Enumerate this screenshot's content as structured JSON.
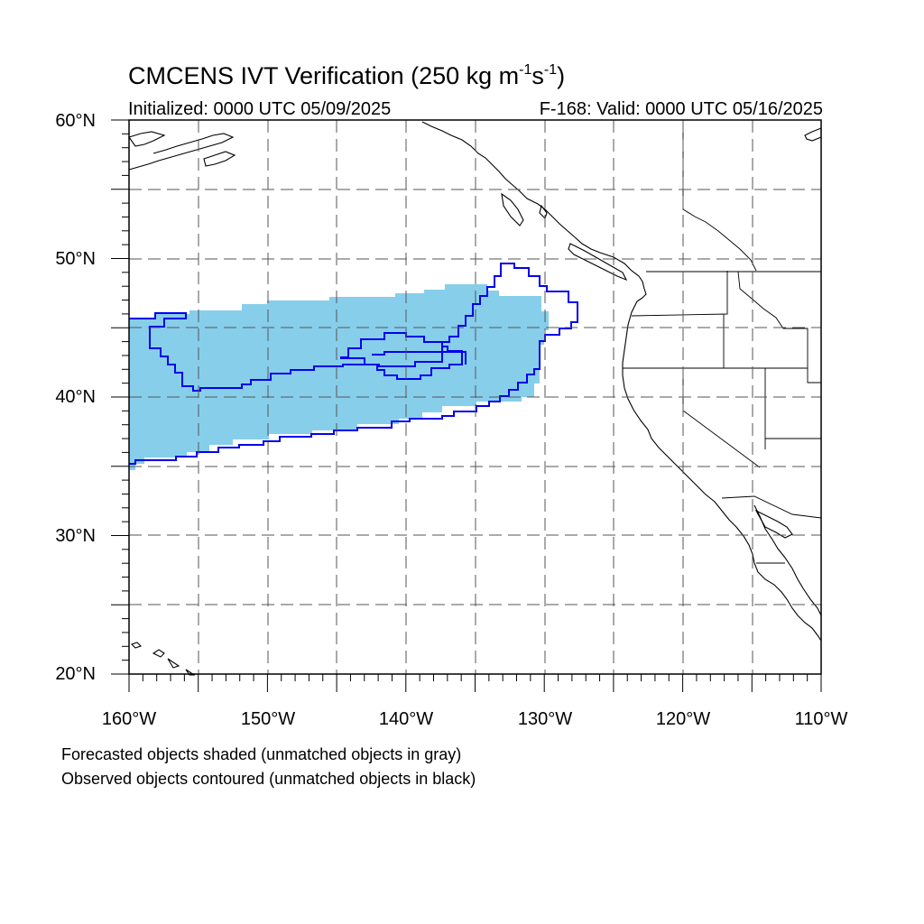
{
  "title": {
    "main": "CMCENS IVT Verification (250 kg m",
    "exp1": "-1",
    "mid": "s",
    "exp2": "-1",
    "end": ")"
  },
  "subtitle": {
    "initialized": "Initialized: 0000 UTC 05/09/2025",
    "valid": "F-168: Valid: 0000 UTC 05/16/2025"
  },
  "axes": {
    "lat_labels": [
      "60°N",
      "50°N",
      "40°N",
      "30°N",
      "20°N"
    ],
    "lon_labels": [
      "160°W",
      "150°W",
      "140°W",
      "130°W",
      "120°W",
      "110°W"
    ],
    "lat_range": [
      20,
      60
    ],
    "lon_range": [
      -160,
      -110
    ],
    "grid": "dashed every 5 degrees"
  },
  "legend_notes": {
    "forecast": "Forecasted objects shaded (unmatched objects in gray)",
    "observed": "Observed objects contoured (unmatched objects in black)"
  },
  "colors": {
    "forecast_fill": "#87ceeb",
    "observed_contour": "#0000ee",
    "coastline": "#000000",
    "grid": "#555555"
  }
}
